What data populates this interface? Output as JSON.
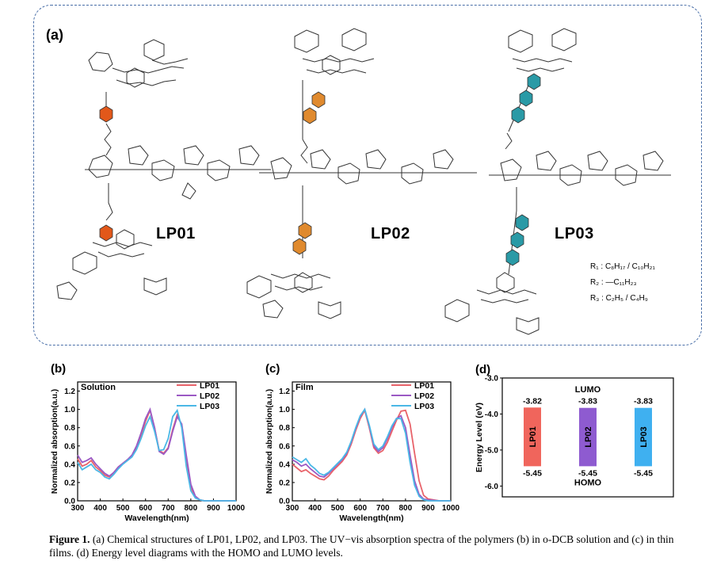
{
  "panel_a": {
    "letter": "(a)",
    "molecules": [
      "LP01",
      "LP02",
      "LP03"
    ],
    "colors": {
      "LP01": "#e2581a",
      "LP02": "#e08a2e",
      "LP03": "#2a9aa6"
    },
    "r_groups": [
      {
        "label": "R₁ :",
        "formula": "C₈H₁₇ / C₁₀H₂₁"
      },
      {
        "label": "R₂ :",
        "formula": "—C₁₁H₂₃"
      },
      {
        "label": "R₃ :",
        "formula": "C₂H₅ / C₄H₉"
      }
    ]
  },
  "chart_data": [
    {
      "type": "line",
      "panel": "(b)",
      "title": "Solution",
      "xlabel": "Wavelength(nm)",
      "ylabel": "Normalized absorption(a.u.)",
      "xlim": [
        300,
        1000
      ],
      "ylim": [
        0.0,
        1.3
      ],
      "xticks": [
        300,
        400,
        500,
        600,
        700,
        800,
        900,
        1000
      ],
      "yticks": [
        0.0,
        0.2,
        0.4,
        0.6,
        0.8,
        1.0,
        1.2
      ],
      "series": [
        {
          "name": "LP01",
          "color": "#e8636a",
          "x": [
            300,
            320,
            340,
            360,
            380,
            400,
            420,
            440,
            460,
            480,
            500,
            520,
            540,
            560,
            580,
            600,
            620,
            640,
            660,
            680,
            700,
            720,
            740,
            760,
            780,
            800,
            820,
            840,
            860,
            880,
            900,
            950,
            1000
          ],
          "y": [
            0.46,
            0.38,
            0.4,
            0.44,
            0.37,
            0.33,
            0.28,
            0.26,
            0.31,
            0.37,
            0.41,
            0.45,
            0.49,
            0.58,
            0.71,
            0.87,
            0.99,
            0.8,
            0.55,
            0.52,
            0.58,
            0.78,
            0.94,
            0.83,
            0.45,
            0.15,
            0.04,
            0.01,
            0.0,
            0.0,
            0.0,
            0.0,
            0.0
          ]
        },
        {
          "name": "LP02",
          "color": "#9b59c4",
          "x": [
            300,
            320,
            340,
            360,
            380,
            400,
            420,
            440,
            460,
            480,
            500,
            520,
            540,
            560,
            580,
            600,
            620,
            640,
            660,
            680,
            700,
            720,
            740,
            760,
            780,
            800,
            820,
            840,
            860,
            880,
            900,
            950,
            1000
          ],
          "y": [
            0.5,
            0.42,
            0.44,
            0.47,
            0.4,
            0.35,
            0.3,
            0.27,
            0.31,
            0.37,
            0.41,
            0.45,
            0.5,
            0.6,
            0.74,
            0.9,
            1.0,
            0.8,
            0.54,
            0.51,
            0.57,
            0.76,
            0.92,
            0.84,
            0.5,
            0.18,
            0.05,
            0.01,
            0.0,
            0.0,
            0.0,
            0.0,
            0.0
          ]
        },
        {
          "name": "LP03",
          "color": "#4bb8e6",
          "x": [
            300,
            320,
            340,
            360,
            380,
            400,
            420,
            440,
            460,
            480,
            500,
            520,
            540,
            560,
            580,
            600,
            620,
            640,
            660,
            680,
            700,
            720,
            740,
            760,
            780,
            800,
            820,
            840,
            860,
            880,
            900,
            950,
            1000
          ],
          "y": [
            0.42,
            0.34,
            0.37,
            0.4,
            0.34,
            0.31,
            0.26,
            0.24,
            0.29,
            0.35,
            0.4,
            0.44,
            0.48,
            0.56,
            0.68,
            0.82,
            0.92,
            0.76,
            0.55,
            0.56,
            0.68,
            0.92,
            0.99,
            0.8,
            0.38,
            0.11,
            0.03,
            0.01,
            0.0,
            0.0,
            0.0,
            0.0,
            0.0
          ]
        }
      ]
    },
    {
      "type": "line",
      "panel": "(c)",
      "title": "Film",
      "xlabel": "Wavelength(nm)",
      "ylabel": "Normalized absorption(a.u.)",
      "xlim": [
        300,
        1000
      ],
      "ylim": [
        0.0,
        1.3
      ],
      "xticks": [
        300,
        400,
        500,
        600,
        700,
        800,
        900,
        1000
      ],
      "yticks": [
        0.0,
        0.2,
        0.4,
        0.6,
        0.8,
        1.0,
        1.2
      ],
      "series": [
        {
          "name": "LP01",
          "color": "#e8636a",
          "x": [
            300,
            320,
            340,
            360,
            380,
            400,
            420,
            440,
            460,
            480,
            500,
            520,
            540,
            560,
            580,
            600,
            620,
            640,
            660,
            680,
            700,
            720,
            740,
            760,
            780,
            800,
            820,
            840,
            860,
            880,
            900,
            950,
            1000
          ],
          "y": [
            0.4,
            0.36,
            0.32,
            0.34,
            0.3,
            0.27,
            0.24,
            0.23,
            0.27,
            0.33,
            0.38,
            0.43,
            0.5,
            0.62,
            0.77,
            0.9,
            0.99,
            0.8,
            0.58,
            0.52,
            0.55,
            0.64,
            0.76,
            0.88,
            0.98,
            0.99,
            0.84,
            0.52,
            0.22,
            0.06,
            0.02,
            0.0,
            0.0
          ]
        },
        {
          "name": "LP02",
          "color": "#9b59c4",
          "x": [
            300,
            320,
            340,
            360,
            380,
            400,
            420,
            440,
            460,
            480,
            500,
            520,
            540,
            560,
            580,
            600,
            620,
            640,
            660,
            680,
            700,
            720,
            740,
            760,
            780,
            800,
            820,
            840,
            860,
            880,
            900,
            950,
            1000
          ],
          "y": [
            0.45,
            0.42,
            0.38,
            0.4,
            0.35,
            0.31,
            0.27,
            0.26,
            0.3,
            0.35,
            0.4,
            0.45,
            0.52,
            0.64,
            0.79,
            0.92,
            1.0,
            0.82,
            0.6,
            0.54,
            0.58,
            0.68,
            0.8,
            0.9,
            0.93,
            0.8,
            0.5,
            0.22,
            0.07,
            0.02,
            0.01,
            0.0,
            0.0
          ]
        },
        {
          "name": "LP03",
          "color": "#4bb8e6",
          "x": [
            300,
            320,
            340,
            360,
            380,
            400,
            420,
            440,
            460,
            480,
            500,
            520,
            540,
            560,
            580,
            600,
            620,
            640,
            660,
            680,
            700,
            720,
            740,
            760,
            780,
            800,
            820,
            840,
            860,
            880,
            900,
            950,
            1000
          ],
          "y": [
            0.48,
            0.45,
            0.42,
            0.46,
            0.39,
            0.35,
            0.3,
            0.28,
            0.31,
            0.36,
            0.41,
            0.46,
            0.53,
            0.65,
            0.8,
            0.93,
            1.0,
            0.83,
            0.62,
            0.56,
            0.6,
            0.7,
            0.82,
            0.9,
            0.9,
            0.74,
            0.42,
            0.17,
            0.05,
            0.01,
            0.0,
            0.0,
            0.0
          ]
        }
      ]
    },
    {
      "type": "bar",
      "panel": "(d)",
      "ylabel": "Energy Level (eV)",
      "ylim": [
        -6.3,
        -3.0
      ],
      "yticks": [
        -3.0,
        -4.0,
        -5.0,
        -6.0
      ],
      "categories": [
        "LP01",
        "LP02",
        "LP03"
      ],
      "series": [
        {
          "name": "LUMO",
          "values": [
            -3.82,
            -3.83,
            -3.83
          ]
        },
        {
          "name": "HOMO",
          "values": [
            -5.45,
            -5.45,
            -5.45
          ]
        }
      ],
      "value_labels": {
        "lumo": [
          "-3.82",
          "-3.83",
          "-3.83"
        ],
        "homo": [
          "-5.45",
          "-5.45",
          "-5.45"
        ]
      },
      "bar_colors": [
        "#f0655c",
        "#8e5bd0",
        "#3fb0f0"
      ],
      "annotations": [
        "LUMO",
        "HOMO"
      ]
    }
  ],
  "caption": {
    "label": "Figure 1.",
    "text": " (a) Chemical structures of LP01, LP02, and LP03. The UV−vis absorption spectra of the polymers (b) in o-DCB solution and (c) in thin films. (d) Energy level diagrams with the HOMO and LUMO levels."
  }
}
